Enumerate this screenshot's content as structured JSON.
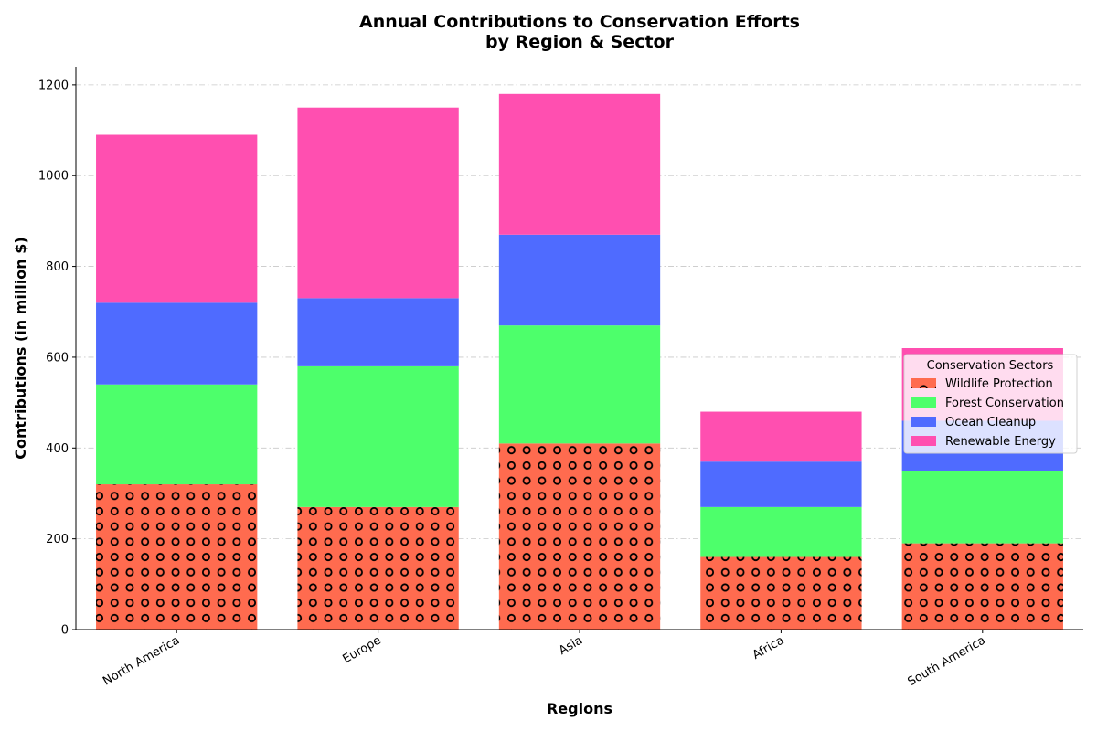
{
  "chart_data": {
    "type": "bar",
    "stacked": true,
    "title_lines": [
      "Annual Contributions to Conservation Efforts",
      "by Region & Sector"
    ],
    "xlabel": "Regions",
    "ylabel": "Contributions (in million $)",
    "categories": [
      "North America",
      "Europe",
      "Asia",
      "Africa",
      "South America"
    ],
    "series": [
      {
        "name": "Wildlife Protection",
        "color": "#ff6b4f",
        "pattern": "circles",
        "values": [
          320,
          270,
          410,
          160,
          190
        ]
      },
      {
        "name": "Forest Conservation",
        "color": "#4dff6b",
        "values": [
          220,
          310,
          260,
          110,
          160
        ]
      },
      {
        "name": "Ocean Cleanup",
        "color": "#4f6bff",
        "values": [
          180,
          150,
          200,
          100,
          110
        ]
      },
      {
        "name": "Renewable Energy",
        "color": "#ff4fb0",
        "values": [
          370,
          420,
          310,
          110,
          160
        ]
      }
    ],
    "yticks": [
      0,
      200,
      400,
      600,
      800,
      1000,
      1200
    ],
    "ylim": [
      0,
      1240
    ],
    "grid": "y-dashdot",
    "legend": {
      "title": "Conservation Sectors",
      "placement": "right"
    }
  }
}
